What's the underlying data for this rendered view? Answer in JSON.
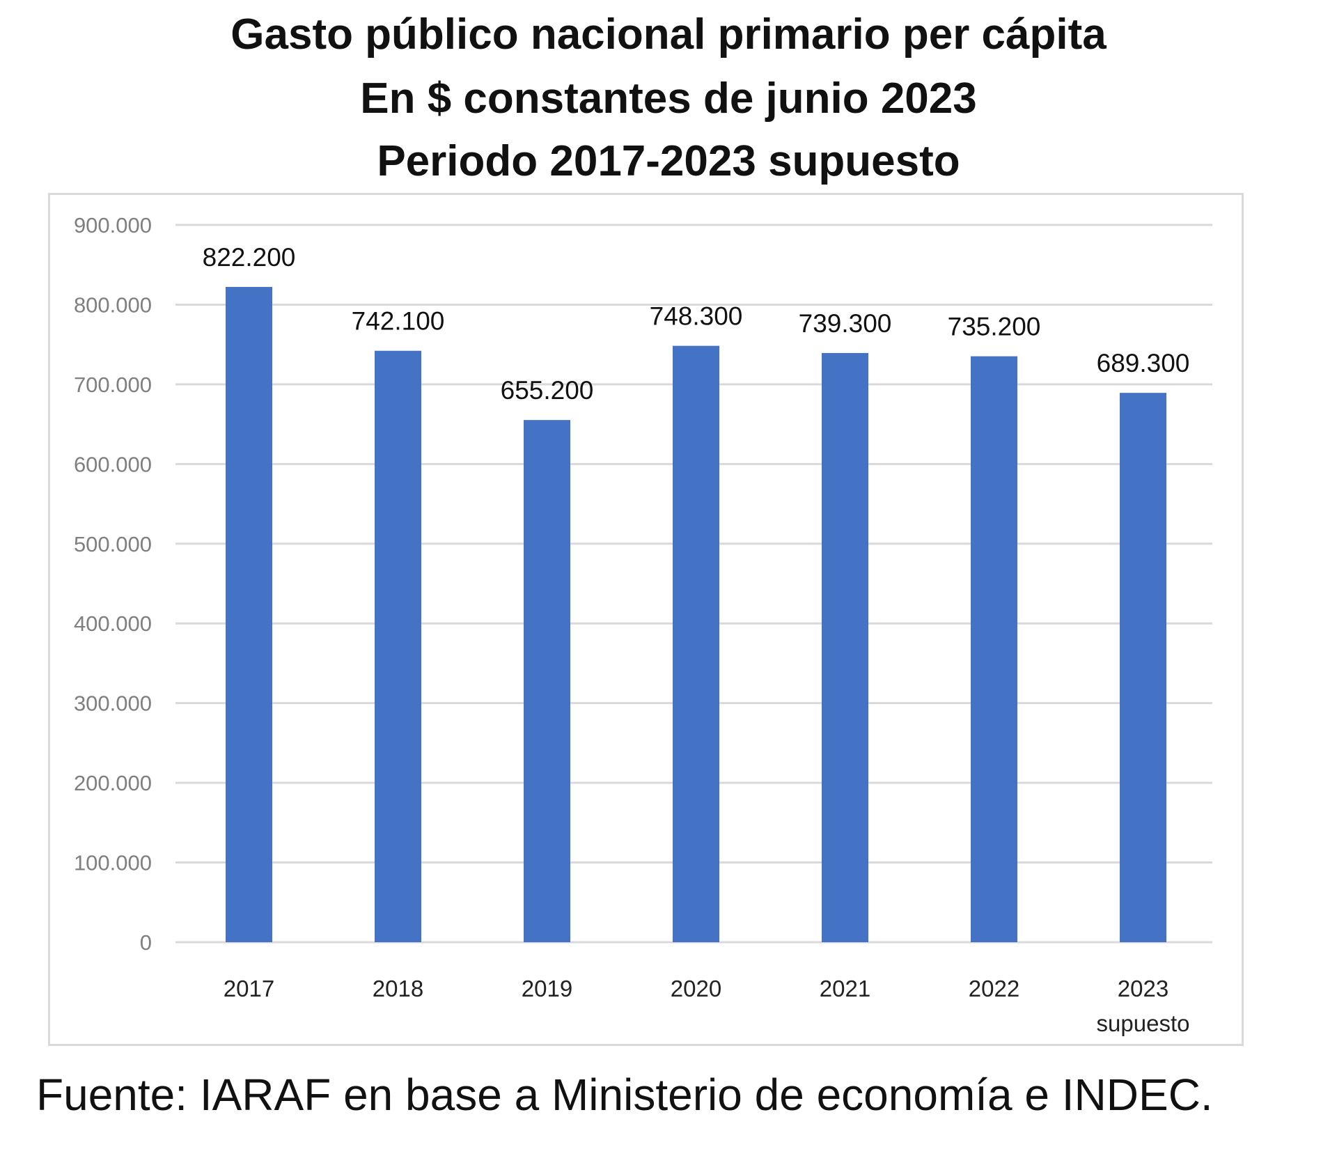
{
  "chart_data": {
    "type": "bar",
    "title": "Gasto público nacional primario per cápita",
    "subtitle": "En $ constantes de junio 2023",
    "subtitle2": "Periodo 2017-2023 supuesto",
    "categories": [
      "2017",
      "2018",
      "2019",
      "2020",
      "2021",
      "2022",
      "2023\nsupuesto"
    ],
    "values": [
      822200,
      742100,
      655200,
      748300,
      739300,
      735200,
      689300
    ],
    "data_labels": [
      "822.200",
      "742.100",
      "655.200",
      "748.300",
      "739.300",
      "735.200",
      "689.300"
    ],
    "yticks": [
      0,
      100000,
      200000,
      300000,
      400000,
      500000,
      600000,
      700000,
      800000,
      900000
    ],
    "ytick_labels": [
      "0",
      "100.000",
      "200.000",
      "300.000",
      "400.000",
      "500.000",
      "600.000",
      "700.000",
      "800.000",
      "900.000"
    ],
    "ylim": [
      0,
      900000
    ],
    "xlabel": "",
    "ylabel": "",
    "grid": true,
    "bar_color": "#4472c4",
    "source": "Fuente: IARAF en base a Ministerio de economía e INDEC."
  }
}
